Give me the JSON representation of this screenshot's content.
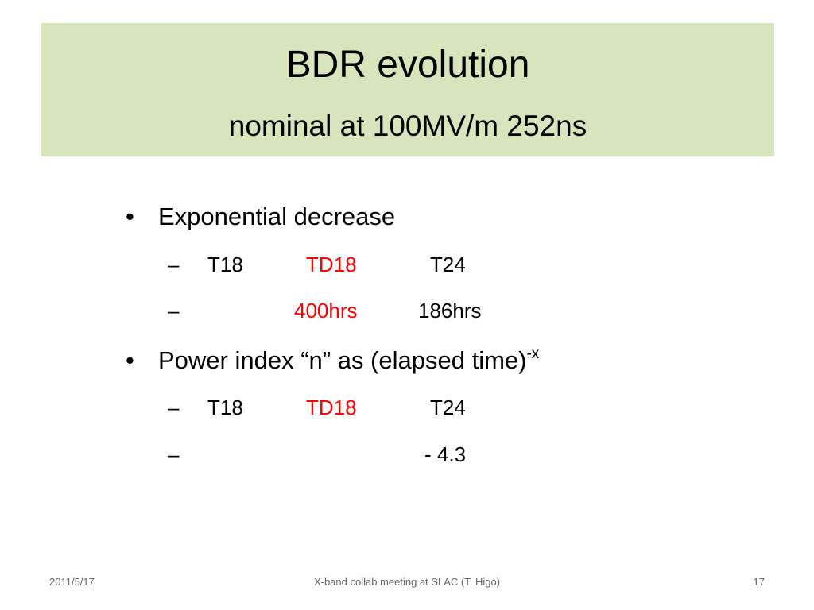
{
  "header": {
    "title": "BDR evolution",
    "subtitle": "nominal at 100MV/m 252ns"
  },
  "bullets": [
    {
      "text": "Exponential decrease",
      "rows": [
        {
          "t18": "T18",
          "td18": "TD18",
          "t24": "T24"
        },
        {
          "td18": "400hrs",
          "t24": "186hrs"
        }
      ]
    },
    {
      "text": "Power index “n” as (elapsed time)",
      "superscript": "-x",
      "rows": [
        {
          "t18": "T18",
          "td18": "TD18",
          "t24": "T24"
        },
        {
          "t24": "- 4.3"
        }
      ]
    }
  ],
  "footer": {
    "date": "2011/5/17",
    "center": "X-band collab meeting at SLAC (T. Higo)",
    "page": "17"
  }
}
